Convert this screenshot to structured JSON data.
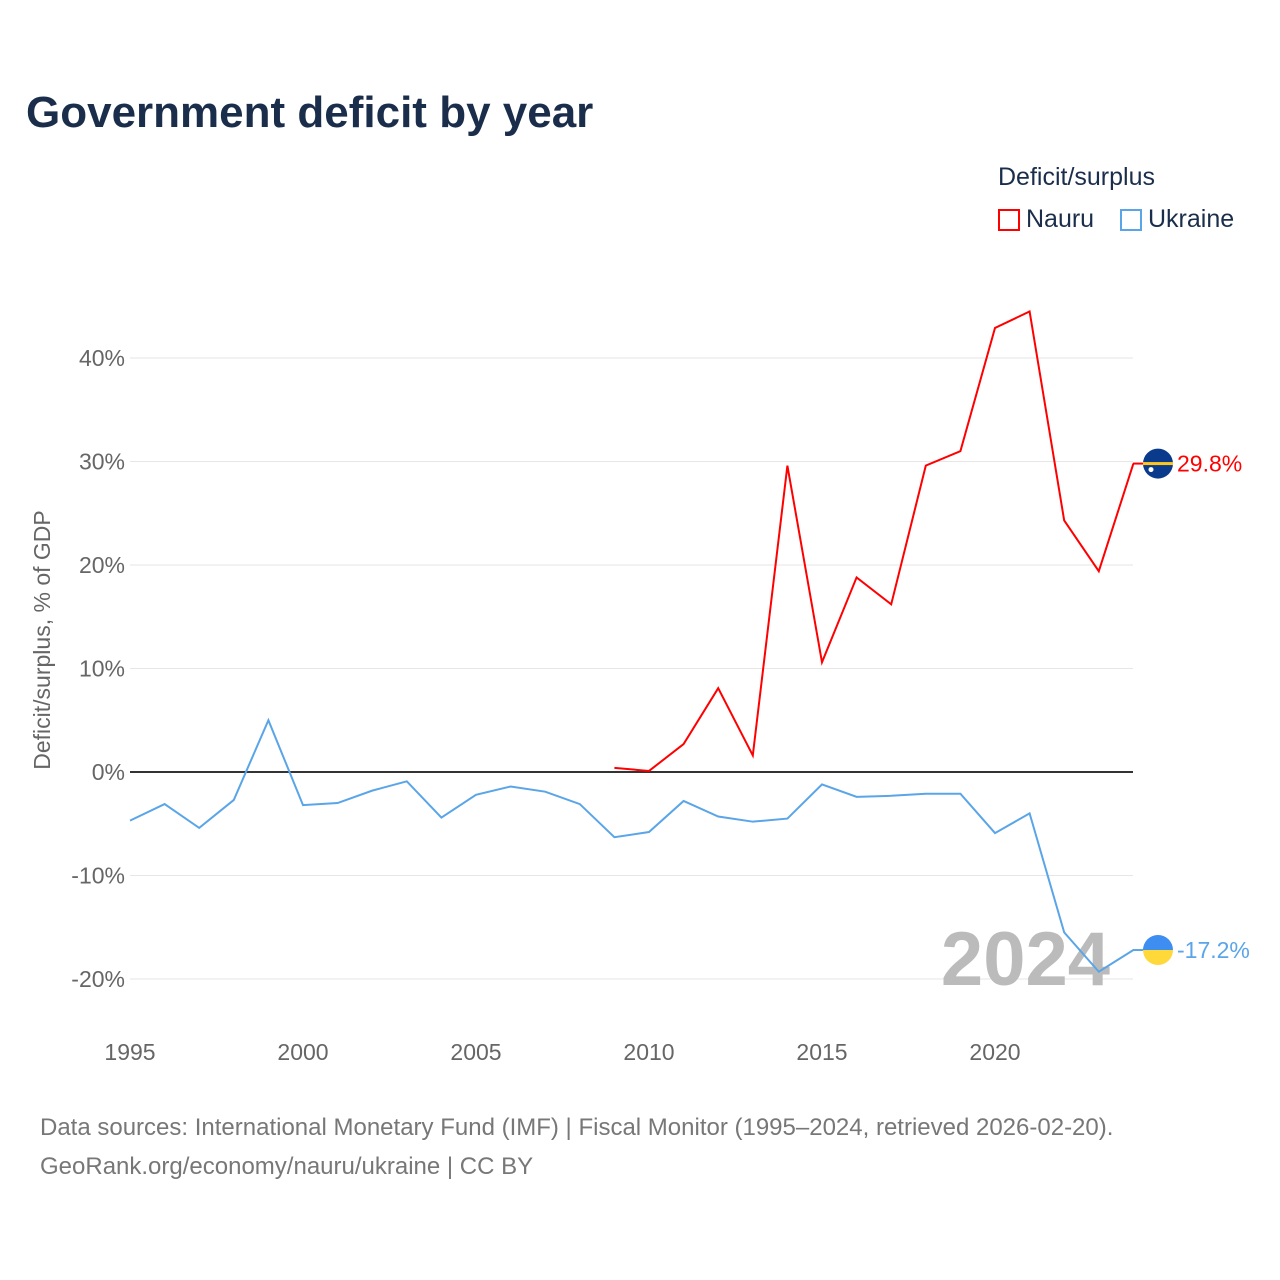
{
  "title": "Government deficit by year",
  "legend": {
    "title": "Deficit/surplus",
    "items": [
      "Nauru",
      "Ukraine"
    ]
  },
  "source": {
    "line1": "Data sources: International Monetary Fund (IMF) | Fiscal Monitor (1995–2024, retrieved 2026-02-20).",
    "line2": "GeoRank.org/economy/nauru/ukraine | CC BY"
  },
  "chart_data": {
    "type": "line",
    "title": "Government deficit by year",
    "ylabel": "Deficit/surplus, % of GDP",
    "xlabel": "",
    "xlim": [
      1995,
      2024
    ],
    "ylim": [
      -25,
      45
    ],
    "xticks": [
      1995,
      2000,
      2005,
      2010,
      2015,
      2020
    ],
    "yticks": [
      -20,
      -10,
      0,
      10,
      20,
      30,
      40
    ],
    "grid": true,
    "legend_position": "top-right",
    "year_watermark": "2024",
    "series": [
      {
        "name": "Nauru",
        "color": "#ff0000",
        "end_label": "29.8%",
        "x": [
          2009,
          2010,
          2011,
          2012,
          2013,
          2014,
          2015,
          2016,
          2017,
          2018,
          2019,
          2020,
          2021,
          2022,
          2023,
          2024
        ],
        "values": [
          0.4,
          0.1,
          2.7,
          8.1,
          1.6,
          29.6,
          10.6,
          18.8,
          16.2,
          29.6,
          31.0,
          42.9,
          44.5,
          24.3,
          19.4,
          29.8
        ]
      },
      {
        "name": "Ukraine",
        "color": "#5aa5e8",
        "end_label": "-17.2%",
        "x": [
          1995,
          1996,
          1997,
          1998,
          1999,
          2000,
          2001,
          2002,
          2003,
          2004,
          2005,
          2006,
          2007,
          2008,
          2009,
          2010,
          2011,
          2012,
          2013,
          2014,
          2015,
          2016,
          2017,
          2018,
          2019,
          2020,
          2021,
          2022,
          2023,
          2024
        ],
        "values": [
          -4.7,
          -3.1,
          -5.4,
          -2.7,
          5.0,
          -3.2,
          -3.0,
          -1.8,
          -0.9,
          -4.4,
          -2.2,
          -1.4,
          -1.9,
          -3.1,
          -6.3,
          -5.8,
          -2.8,
          -4.3,
          -4.8,
          -4.5,
          -1.2,
          -2.4,
          -2.3,
          -2.1,
          -2.1,
          -5.9,
          -4.0,
          -15.5,
          -19.3,
          -17.2
        ]
      }
    ]
  }
}
